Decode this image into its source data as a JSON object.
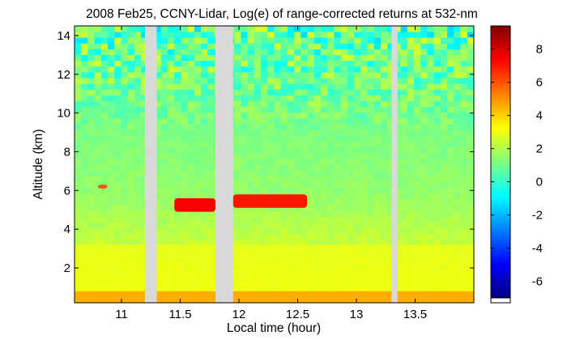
{
  "chart_data": {
    "type": "heatmap",
    "title": "2008 Feb25, CCNY-Lidar, Log(e) of range-corrected returns at 532-nm",
    "xlabel": "Local time (hour)",
    "ylabel": "Altitude (km)",
    "xlim": [
      10.6,
      14.0
    ],
    "ylim": [
      0.2,
      14.5
    ],
    "x_ticks": [
      11,
      11.5,
      12,
      12.5,
      13,
      13.5
    ],
    "x_tick_labels": [
      "11",
      "11.5",
      "12",
      "12.5",
      "13",
      "13.5"
    ],
    "y_ticks": [
      2,
      4,
      6,
      8,
      10,
      12,
      14
    ],
    "y_tick_labels": [
      "2",
      "4",
      "6",
      "8",
      "10",
      "12",
      "14"
    ],
    "colorbar": {
      "range": [
        -7,
        9.4
      ],
      "ticks": [
        -6,
        -4,
        -2,
        0,
        2,
        4,
        6,
        8
      ],
      "tick_labels": [
        "-6",
        "-4",
        "-2",
        "0",
        "2",
        "4",
        "6",
        "8"
      ],
      "colormap": "jet"
    },
    "data_gaps_hours": [
      [
        11.2,
        11.3
      ],
      [
        11.8,
        11.95
      ],
      [
        13.3,
        13.35
      ]
    ],
    "features": [
      {
        "kind": "surface aerosol layer",
        "x_range": [
          10.6,
          14.0
        ],
        "alt_range_km": [
          0.2,
          0.8
        ],
        "value": 5.0
      },
      {
        "kind": "boundary layer",
        "x_range": [
          10.6,
          14.0
        ],
        "alt_range_km": [
          0.8,
          3.2
        ],
        "value": 3.0
      },
      {
        "kind": "cloud",
        "x_range": [
          11.45,
          11.8
        ],
        "alt_range_km": [
          4.9,
          5.6
        ],
        "value": 7.5
      },
      {
        "kind": "cloud",
        "x_range": [
          11.95,
          12.58
        ],
        "alt_range_km": [
          5.1,
          5.8
        ],
        "value": 7.0
      },
      {
        "kind": "cloud",
        "x_range": [
          10.8,
          10.88
        ],
        "alt_range_km": [
          6.1,
          6.3
        ],
        "value": 6.0
      }
    ],
    "gap_color": "#d9d9d9"
  }
}
